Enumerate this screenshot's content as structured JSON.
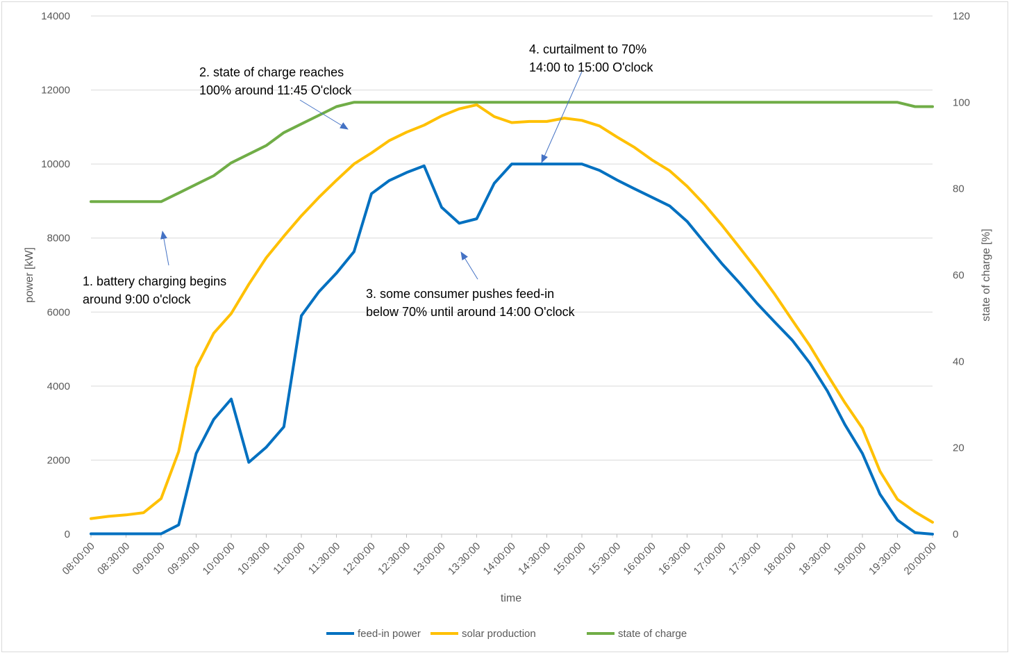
{
  "chart_data": {
    "type": "line",
    "xlabel": "time",
    "ylabel": "power [kW]",
    "y2label": "state of charge [%]",
    "ylim": [
      0,
      14000
    ],
    "yticks": [
      0,
      2000,
      4000,
      6000,
      8000,
      10000,
      12000,
      14000
    ],
    "y2lim": [
      0,
      120
    ],
    "y2ticks": [
      0,
      20,
      40,
      60,
      80,
      100,
      120
    ],
    "grid": true,
    "legend_position": "bottom",
    "x": [
      "08:00:00",
      "08:15:00",
      "08:30:00",
      "08:45:00",
      "09:00:00",
      "09:15:00",
      "09:30:00",
      "09:45:00",
      "10:00:00",
      "10:15:00",
      "10:30:00",
      "10:45:00",
      "11:00:00",
      "11:15:00",
      "11:30:00",
      "11:45:00",
      "12:00:00",
      "12:15:00",
      "12:30:00",
      "12:45:00",
      "13:00:00",
      "13:15:00",
      "13:30:00",
      "13:45:00",
      "14:00:00",
      "14:15:00",
      "14:30:00",
      "14:45:00",
      "15:00:00",
      "15:15:00",
      "15:30:00",
      "15:45:00",
      "16:00:00",
      "16:15:00",
      "16:30:00",
      "16:45:00",
      "17:00:00",
      "17:15:00",
      "17:30:00",
      "17:45:00",
      "18:00:00",
      "18:15:00",
      "18:30:00",
      "18:45:00",
      "19:00:00",
      "19:15:00",
      "19:30:00",
      "19:45:00",
      "20:00:00"
    ],
    "x_tick_labels": [
      "08:00:00",
      "08:30:00",
      "09:00:00",
      "09:30:00",
      "10:00:00",
      "10:30:00",
      "11:00:00",
      "11:30:00",
      "12:00:00",
      "12:30:00",
      "13:00:00",
      "13:30:00",
      "14:00:00",
      "14:30:00",
      "15:00:00",
      "15:30:00",
      "16:00:00",
      "16:30:00",
      "17:00:00",
      "17:30:00",
      "18:00:00",
      "18:30:00",
      "19:00:00",
      "19:30:00",
      "20:00:00"
    ],
    "series": [
      {
        "name": "feed-in power",
        "axis": "left",
        "color": "#0070c0",
        "values": [
          10,
          10,
          10,
          10,
          10,
          250,
          2180,
          3100,
          3650,
          1940,
          2350,
          2900,
          5900,
          6550,
          7050,
          7630,
          9200,
          9550,
          9770,
          9950,
          8830,
          8400,
          8520,
          9480,
          10000,
          10000,
          10000,
          10000,
          10000,
          9830,
          9570,
          9330,
          9100,
          8870,
          8450,
          7870,
          7300,
          6780,
          6230,
          5730,
          5240,
          4620,
          3870,
          2960,
          2180,
          1080,
          380,
          40,
          0
        ]
      },
      {
        "name": "solar production",
        "axis": "left",
        "color": "#ffc000",
        "values": [
          420,
          480,
          520,
          580,
          960,
          2230,
          4500,
          5430,
          5960,
          6750,
          7470,
          8050,
          8600,
          9100,
          9560,
          10000,
          10300,
          10630,
          10860,
          11050,
          11300,
          11490,
          11600,
          11280,
          11120,
          11150,
          11150,
          11240,
          11180,
          11030,
          10730,
          10450,
          10110,
          9820,
          9400,
          8900,
          8340,
          7740,
          7130,
          6480,
          5780,
          5090,
          4310,
          3550,
          2860,
          1700,
          940,
          600,
          320
        ]
      },
      {
        "name": "state of charge",
        "axis": "right",
        "color": "#70ad47",
        "values": [
          77,
          77,
          77,
          77,
          77,
          79,
          81,
          83,
          86,
          88,
          90,
          93,
          95,
          97,
          99,
          100,
          100,
          100,
          100,
          100,
          100,
          100,
          100,
          100,
          100,
          100,
          100,
          100,
          100,
          100,
          100,
          100,
          100,
          100,
          100,
          100,
          100,
          100,
          100,
          100,
          100,
          100,
          100,
          100,
          100,
          100,
          100,
          99,
          99
        ]
      }
    ],
    "annotations": [
      {
        "lines": [
          "1. battery charging begins",
          "around 9:00 o'clock"
        ]
      },
      {
        "lines": [
          "2. state of charge reaches",
          "100% around 11:45 O'clock"
        ]
      },
      {
        "lines": [
          "3. some consumer pushes feed-in",
          "below 70% until around 14:00 O'clock"
        ]
      },
      {
        "lines": [
          "4. curtailment to 70%",
          "14:00 to 15:00 O'clock"
        ]
      }
    ],
    "arrow_color": "#4472c4"
  }
}
